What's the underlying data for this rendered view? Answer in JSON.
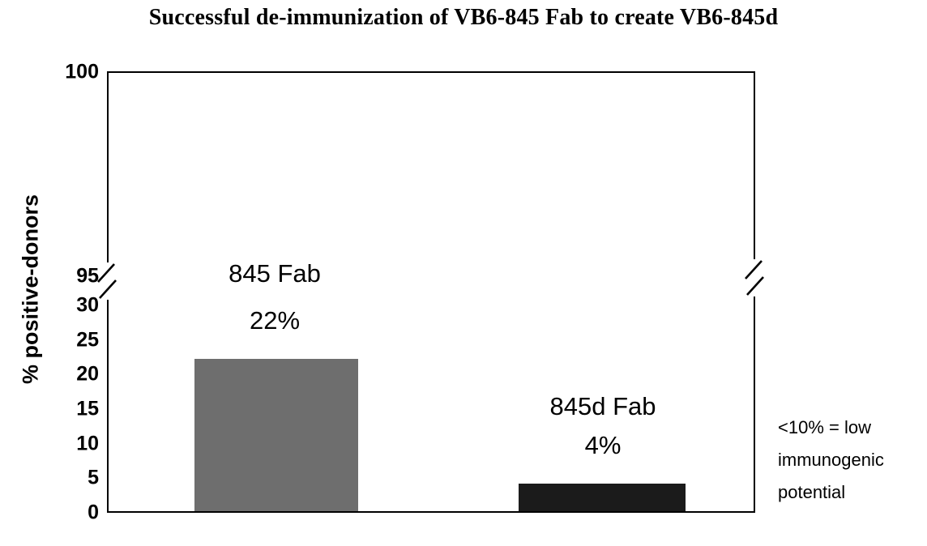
{
  "chart_data": {
    "type": "bar",
    "title": "Successful de-immunization of VB6-845 Fab to create VB6-845d",
    "ylabel": "% positive-donors",
    "xlabel": "",
    "categories": [
      "845 Fab",
      "845d Fab"
    ],
    "values": [
      22,
      4
    ],
    "value_labels": [
      "22%",
      "4%"
    ],
    "bar_colors": [
      "#6e6e6e",
      "#1b1b1b"
    ],
    "grid": false,
    "legend_position": "none",
    "y_axis": {
      "axis_break": true,
      "lower_range": [
        0,
        30
      ],
      "lower_ticks": [
        0,
        5,
        10,
        15,
        20,
        25,
        30
      ],
      "upper_range": [
        95,
        100
      ],
      "upper_ticks": [
        95,
        100
      ]
    },
    "annotation": {
      "lines": [
        "<10% = low",
        "immunogenic",
        "potential"
      ]
    }
  }
}
